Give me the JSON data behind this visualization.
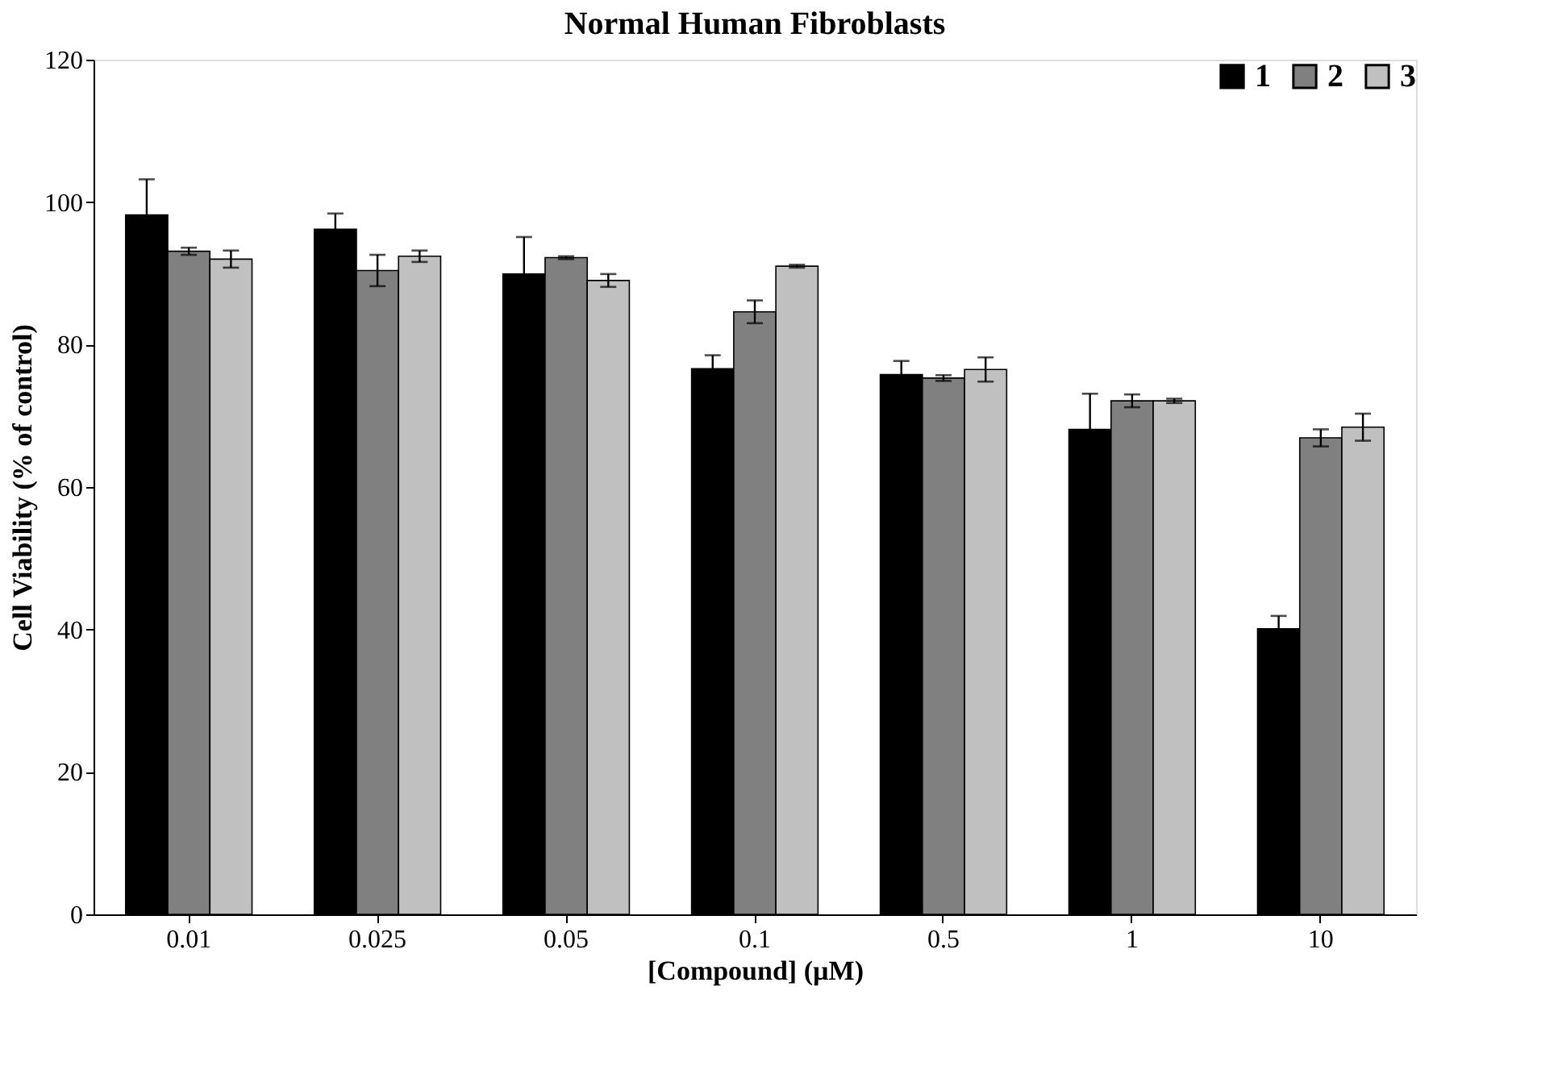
{
  "chart_data": {
    "type": "bar",
    "title": "Normal Human Fibroblasts",
    "xlabel": "[Compound] (µM)",
    "ylabel": "Cell Viability (% of control)",
    "categories": [
      "0.01",
      "0.025",
      "0.05",
      "0.1",
      "0.5",
      "1",
      "10"
    ],
    "series": [
      {
        "name": "1",
        "color": "#000000",
        "values": [
          98.2,
          96.2,
          89.9,
          76.6,
          75.8,
          68.1,
          40.1
        ],
        "errors": [
          5,
          2.2,
          5.2,
          1.9,
          1.9,
          5,
          1.8
        ]
      },
      {
        "name": "2",
        "color": "#808080",
        "values": [
          93.1,
          90.4,
          92.2,
          84.6,
          75.3,
          72.1,
          66.9
        ],
        "errors": [
          0.5,
          2.2,
          0.2,
          1.6,
          0.4,
          0.9,
          1.2
        ]
      },
      {
        "name": "3",
        "color": "#c0c0c0",
        "values": [
          92.0,
          92.4,
          89.0,
          91.0,
          76.5,
          72.1,
          68.4
        ],
        "errors": [
          1.2,
          0.8,
          0.9,
          0.2,
          1.7,
          0.3,
          1.9
        ]
      }
    ],
    "ylim": [
      0,
      120
    ],
    "yticks": [
      0,
      20,
      40,
      60,
      80,
      100,
      120
    ],
    "grid": false,
    "legend": "top right"
  }
}
